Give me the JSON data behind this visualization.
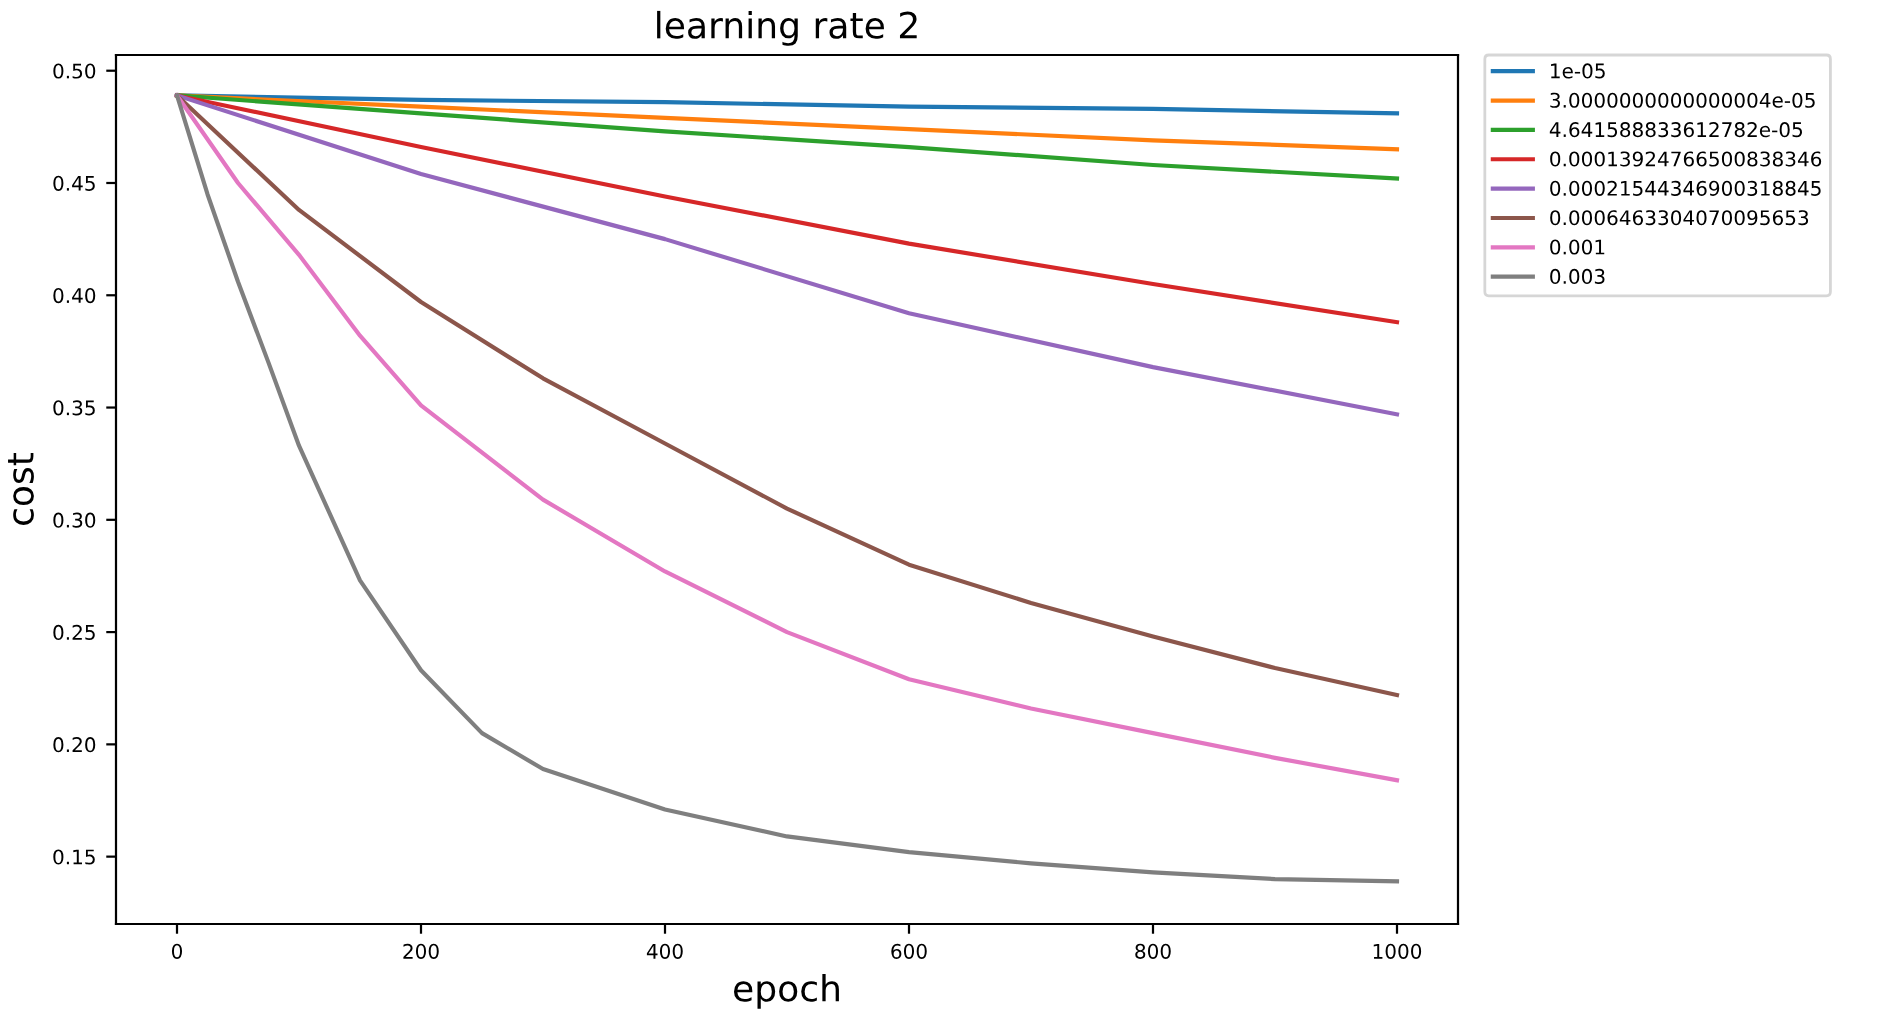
{
  "chart_data": {
    "type": "line",
    "title": "learning rate 2",
    "xlabel": "epoch",
    "ylabel": "cost",
    "xlim": [
      -50,
      1050
    ],
    "xticks": [
      0,
      200,
      400,
      600,
      800,
      1000
    ],
    "ylim": [
      0.12,
      0.507
    ],
    "yticks": [
      0.15,
      {
        "value": 0.2,
        "label": "0.20"
      },
      0.25,
      {
        "value": 0.3,
        "label": "0.30"
      },
      0.35,
      {
        "value": 0.4,
        "label": "0.40"
      },
      0.45,
      {
        "value": 0.5,
        "label": "0.50"
      }
    ],
    "grid": false,
    "legend": "outside top right",
    "marker": "none",
    "line_style": "solid",
    "series": [
      {
        "name": "1e-05",
        "color": "#1f77b4",
        "x": [
          0,
          200,
          400,
          600,
          800,
          1000
        ],
        "values": [
          0.489,
          0.487,
          0.486,
          0.484,
          0.483,
          0.481
        ]
      },
      {
        "name": "3.0000000000000004e-05",
        "color": "#ff7f0e",
        "x": [
          0,
          200,
          400,
          600,
          800,
          1000
        ],
        "values": [
          0.489,
          0.484,
          0.479,
          0.474,
          0.469,
          0.465
        ]
      },
      {
        "name": "4.641588833612782e-05",
        "color": "#2ca02c",
        "x": [
          0,
          200,
          400,
          600,
          800,
          1000
        ],
        "values": [
          0.489,
          0.481,
          0.473,
          0.466,
          0.458,
          0.452
        ]
      },
      {
        "name": "0.00013924766500838346",
        "color": "#d62728",
        "x": [
          0,
          200,
          400,
          600,
          800,
          1000
        ],
        "values": [
          0.489,
          0.466,
          0.444,
          0.423,
          0.405,
          0.388
        ]
      },
      {
        "name": "0.00021544346900318845",
        "color": "#9467bd",
        "x": [
          0,
          200,
          400,
          600,
          800,
          1000
        ],
        "values": [
          0.489,
          0.454,
          0.425,
          0.392,
          0.368,
          0.347
        ]
      },
      {
        "name": "0.0006463304070095653",
        "color": "#8c564b",
        "x": [
          0,
          100,
          200,
          300,
          400,
          500,
          600,
          700,
          800,
          900,
          1000
        ],
        "values": [
          0.489,
          0.438,
          0.397,
          0.363,
          0.334,
          0.305,
          0.28,
          0.263,
          0.248,
          0.234,
          0.222
        ]
      },
      {
        "name": "0.001",
        "color": "#e377c2",
        "x": [
          0,
          50,
          100,
          150,
          200,
          300,
          400,
          500,
          600,
          700,
          800,
          900,
          1000
        ],
        "values": [
          0.489,
          0.45,
          0.418,
          0.382,
          0.351,
          0.309,
          0.277,
          0.25,
          0.229,
          0.216,
          0.205,
          0.194,
          0.184
        ]
      },
      {
        "name": "0.003",
        "color": "#7f7f7f",
        "x": [
          0,
          25,
          50,
          75,
          100,
          150,
          200,
          250,
          300,
          400,
          500,
          600,
          700,
          800,
          900,
          1000
        ],
        "values": [
          0.489,
          0.445,
          0.406,
          0.37,
          0.333,
          0.273,
          0.233,
          0.205,
          0.189,
          0.171,
          0.159,
          0.152,
          0.147,
          0.143,
          0.14,
          0.139
        ]
      }
    ]
  }
}
